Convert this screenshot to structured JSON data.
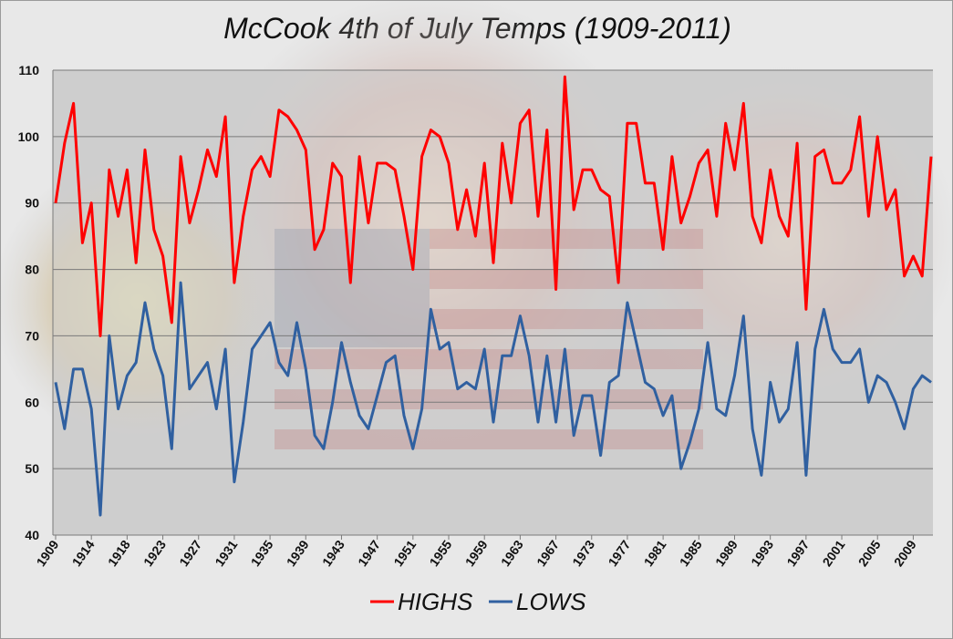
{
  "chart_data": {
    "type": "line",
    "title": "McCook 4th of July Temps (1909-2011)",
    "xlabel": "",
    "ylabel": "",
    "ylim": [
      40,
      110
    ],
    "yticks": [
      40,
      50,
      60,
      70,
      80,
      90,
      100,
      110
    ],
    "xtick_labels": [
      "1909",
      "1914",
      "1918",
      "1923",
      "1927",
      "1931",
      "1935",
      "1939",
      "1943",
      "1947",
      "1951",
      "1955",
      "1959",
      "1963",
      "1967",
      "1973",
      "1977",
      "1981",
      "1985",
      "1989",
      "1993",
      "1997",
      "2001",
      "2005",
      "2009"
    ],
    "grid": true,
    "legend": "bottom",
    "series": [
      {
        "name": "HIGHS",
        "color": "#ff0000",
        "values": [
          90,
          99,
          105,
          84,
          90,
          70,
          95,
          88,
          95,
          81,
          98,
          86,
          82,
          72,
          97,
          87,
          92,
          98,
          94,
          103,
          78,
          88,
          95,
          97,
          94,
          104,
          103,
          101,
          98,
          83,
          86,
          96,
          94,
          78,
          97,
          87,
          96,
          96,
          95,
          88,
          80,
          97,
          101,
          100,
          96,
          86,
          92,
          85,
          96,
          81,
          99,
          90,
          102,
          104,
          88,
          101,
          77,
          109,
          89,
          95,
          95,
          92,
          91,
          78,
          102,
          102,
          93,
          93,
          83,
          97,
          87,
          91,
          96,
          98,
          88,
          102,
          95,
          105,
          88,
          84,
          95,
          88,
          85,
          99,
          74,
          97,
          98,
          93,
          93,
          95,
          103,
          88,
          100,
          89,
          92,
          79,
          82,
          79,
          97
        ]
      },
      {
        "name": "LOWS",
        "color": "#3060a0",
        "values": [
          63,
          56,
          65,
          65,
          59,
          43,
          70,
          59,
          64,
          66,
          75,
          68,
          64,
          53,
          78,
          62,
          64,
          66,
          59,
          68,
          48,
          57,
          68,
          70,
          72,
          66,
          64,
          72,
          65,
          55,
          53,
          60,
          69,
          63,
          58,
          56,
          61,
          66,
          67,
          58,
          53,
          59,
          74,
          68,
          69,
          62,
          63,
          62,
          68,
          57,
          67,
          67,
          73,
          67,
          57,
          67,
          57,
          68,
          55,
          61,
          61,
          52,
          63,
          64,
          75,
          69,
          63,
          62,
          58,
          61,
          50,
          54,
          59,
          69,
          59,
          58,
          64,
          73,
          56,
          49,
          63,
          57,
          59,
          69,
          49,
          68,
          74,
          68,
          66,
          66,
          68,
          60,
          64,
          63,
          60,
          56,
          62,
          64,
          63
        ]
      }
    ]
  }
}
